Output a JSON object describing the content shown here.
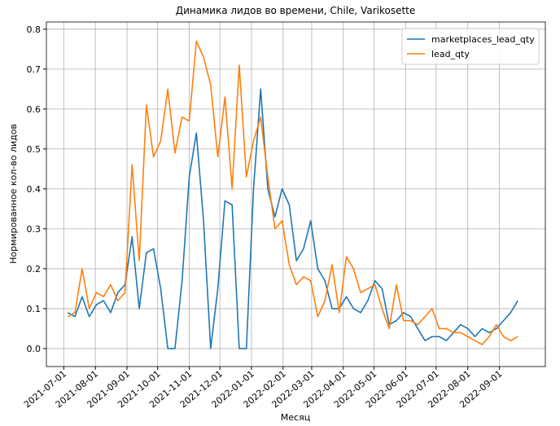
{
  "chart_data": {
    "type": "line",
    "title": "Динамика лидов во времени, Chile, Varikosette",
    "x_label": "Месяц",
    "y_label": "Нормированное кол-во лидов",
    "x": [
      "2021-07-05",
      "2021-07-12",
      "2021-07-19",
      "2021-07-26",
      "2021-08-02",
      "2021-08-09",
      "2021-08-16",
      "2021-08-23",
      "2021-08-30",
      "2021-09-06",
      "2021-09-13",
      "2021-09-20",
      "2021-09-27",
      "2021-10-04",
      "2021-10-11",
      "2021-10-18",
      "2021-10-25",
      "2021-11-01",
      "2021-11-08",
      "2021-11-15",
      "2021-11-22",
      "2021-11-29",
      "2021-12-06",
      "2021-12-13",
      "2021-12-20",
      "2021-12-27",
      "2022-01-03",
      "2022-01-10",
      "2022-01-17",
      "2022-01-24",
      "2022-01-31",
      "2022-02-07",
      "2022-02-14",
      "2022-02-21",
      "2022-02-28",
      "2022-03-07",
      "2022-03-14",
      "2022-03-21",
      "2022-03-28",
      "2022-04-04",
      "2022-04-11",
      "2022-04-18",
      "2022-04-25",
      "2022-05-02",
      "2022-05-09",
      "2022-05-16",
      "2022-05-23",
      "2022-05-30",
      "2022-06-06",
      "2022-06-13",
      "2022-06-20",
      "2022-06-27",
      "2022-07-04",
      "2022-07-11",
      "2022-07-18",
      "2022-07-25",
      "2022-08-01",
      "2022-08-08",
      "2022-08-15",
      "2022-08-22",
      "2022-08-29",
      "2022-09-05",
      "2022-09-12",
      "2022-09-19"
    ],
    "series": [
      {
        "name": "marketplaces_lead_qty",
        "color": "#1f77b4",
        "values": [
          0.09,
          0.08,
          0.13,
          0.08,
          0.11,
          0.12,
          0.09,
          0.14,
          0.16,
          0.28,
          0.1,
          0.24,
          0.25,
          0.15,
          0.0,
          0.0,
          0.17,
          0.43,
          0.54,
          0.32,
          0.0,
          0.15,
          0.37,
          0.36,
          0.0,
          0.0,
          0.4,
          0.65,
          0.4,
          0.33,
          0.4,
          0.36,
          0.22,
          0.25,
          0.32,
          0.2,
          0.17,
          0.1,
          0.1,
          0.13,
          0.1,
          0.09,
          0.12,
          0.17,
          0.15,
          0.06,
          0.07,
          0.09,
          0.08,
          0.05,
          0.02,
          0.03,
          0.03,
          0.02,
          0.04,
          0.06,
          0.05,
          0.03,
          0.05,
          0.04,
          0.05,
          0.07,
          0.09,
          0.12
        ]
      },
      {
        "name": "lead_qty",
        "color": "#ff7f0e",
        "values": [
          0.08,
          0.09,
          0.2,
          0.1,
          0.14,
          0.13,
          0.16,
          0.12,
          0.14,
          0.46,
          0.22,
          0.61,
          0.48,
          0.52,
          0.65,
          0.49,
          0.58,
          0.57,
          0.77,
          0.73,
          0.66,
          0.48,
          0.63,
          0.4,
          0.71,
          0.43,
          0.52,
          0.58,
          0.43,
          0.3,
          0.32,
          0.21,
          0.16,
          0.18,
          0.17,
          0.08,
          0.12,
          0.21,
          0.09,
          0.23,
          0.2,
          0.14,
          0.15,
          0.16,
          0.1,
          0.05,
          0.16,
          0.07,
          0.07,
          0.06,
          0.08,
          0.1,
          0.05,
          0.05,
          0.04,
          0.04,
          0.03,
          0.02,
          0.01,
          0.03,
          0.06,
          0.03,
          0.02,
          0.03
        ]
      }
    ],
    "xlim": [
      "2021-06-14",
      "2022-10-16"
    ],
    "xticks": [
      "2021-07-01",
      "2021-08-01",
      "2021-09-01",
      "2021-10-01",
      "2021-11-01",
      "2021-12-01",
      "2022-01-01",
      "2022-02-01",
      "2022-03-01",
      "2022-04-01",
      "2022-05-01",
      "2022-06-01",
      "2022-07-01",
      "2022-08-01",
      "2022-09-01"
    ],
    "ylim": [
      -0.045,
      0.818
    ],
    "yticks": [
      {
        "value": 0,
        "label": "0.0"
      },
      0.1,
      0.2,
      0.3,
      0.4,
      0.5,
      0.6,
      0.7,
      0.8
    ],
    "grid": true,
    "legend": "upper right"
  }
}
